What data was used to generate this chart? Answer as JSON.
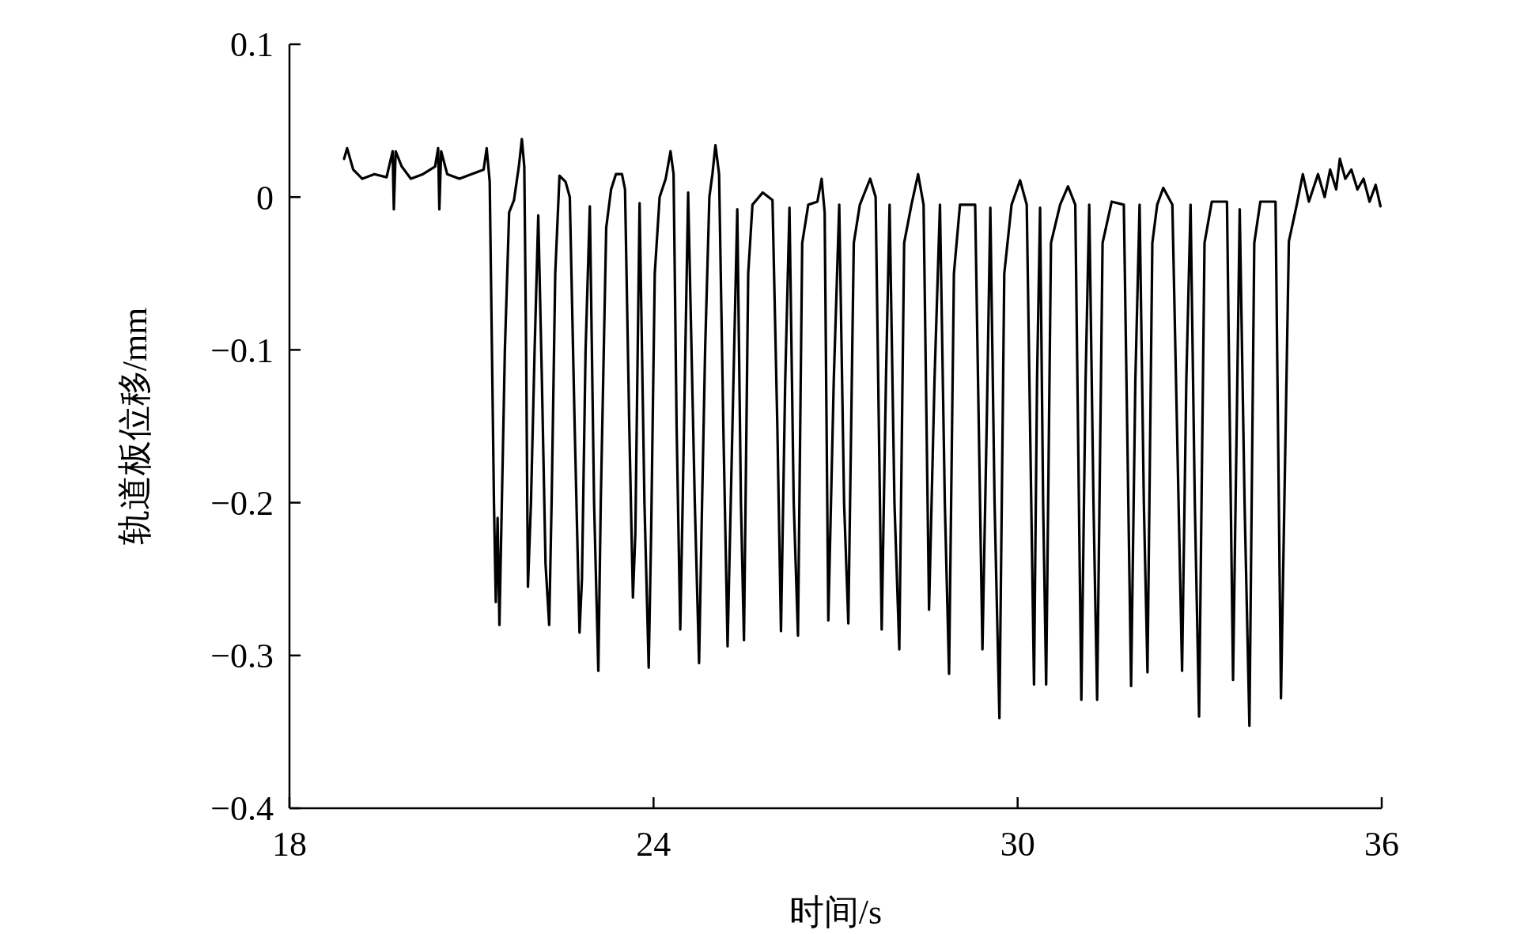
{
  "chart_data": {
    "type": "line",
    "xlabel": "时间/s",
    "ylabel": "轨道板位移/mm",
    "color": "#000000",
    "xlim": [
      18,
      36
    ],
    "ylim": [
      -0.4,
      0.1
    ],
    "xticks": [
      18,
      24,
      30,
      36
    ],
    "yticks": [
      {
        "value": -0.4,
        "label": "−0.4"
      },
      {
        "value": -0.3,
        "label": "−0.3"
      },
      {
        "value": -0.2,
        "label": "−0.2"
      },
      {
        "value": -0.1,
        "label": "−0.1"
      },
      0,
      0.1
    ],
    "x": [
      18.9,
      18.95,
      19.05,
      19.2,
      19.4,
      19.6,
      19.7,
      19.72,
      19.75,
      19.85,
      20.0,
      20.2,
      20.4,
      20.45,
      20.47,
      20.5,
      20.6,
      20.8,
      21.0,
      21.2,
      21.25,
      21.3,
      21.37,
      21.4,
      21.43,
      21.46,
      21.55,
      21.62,
      21.7,
      21.78,
      21.83,
      21.87,
      21.9,
      21.93,
      21.98,
      22.04,
      22.1,
      22.16,
      22.22,
      22.28,
      22.32,
      22.38,
      22.45,
      22.55,
      22.62,
      22.7,
      22.78,
      22.82,
      22.88,
      22.95,
      23.02,
      23.09,
      23.13,
      23.22,
      23.3,
      23.38,
      23.48,
      23.53,
      23.6,
      23.66,
      23.7,
      23.77,
      23.85,
      23.92,
      23.96,
      24.02,
      24.1,
      24.2,
      24.28,
      24.33,
      24.38,
      24.44,
      24.48,
      24.57,
      24.68,
      24.75,
      24.79,
      24.85,
      24.92,
      24.97,
      25.02,
      25.08,
      25.15,
      25.22,
      25.3,
      25.38,
      25.44,
      25.49,
      25.56,
      25.63,
      25.8,
      25.96,
      26.04,
      26.1,
      26.17,
      26.24,
      26.31,
      26.38,
      26.45,
      26.55,
      26.7,
      26.77,
      26.82,
      26.88,
      26.97,
      27.06,
      27.14,
      27.21,
      27.3,
      27.4,
      27.57,
      27.66,
      27.76,
      27.83,
      27.89,
      27.97,
      28.05,
      28.13,
      28.25,
      28.36,
      28.45,
      28.54,
      28.63,
      28.72,
      28.8,
      28.87,
      28.95,
      29.05,
      29.3,
      29.42,
      29.49,
      29.55,
      29.62,
      29.7,
      29.78,
      29.9,
      30.04,
      30.15,
      30.27,
      30.32,
      30.37,
      30.42,
      30.47,
      30.55,
      30.7,
      30.83,
      30.95,
      31.05,
      31.12,
      31.18,
      31.25,
      31.31,
      31.4,
      31.55,
      31.75,
      31.87,
      31.94,
      32.01,
      32.08,
      32.14,
      32.22,
      32.3,
      32.4,
      32.55,
      32.71,
      32.78,
      32.85,
      32.92,
      32.99,
      33.08,
      33.2,
      33.45,
      33.55,
      33.61,
      33.66,
      33.74,
      33.82,
      33.9,
      34.0,
      34.25,
      34.34,
      34.47,
      34.6,
      34.7,
      34.8,
      34.95,
      35.06,
      35.15,
      35.25,
      35.31,
      35.4,
      35.5,
      35.6,
      35.7,
      35.8,
      35.9,
      35.98
    ],
    "values": [
      0.025,
      0.032,
      0.018,
      0.012,
      0.015,
      0.013,
      0.03,
      -0.008,
      0.03,
      0.02,
      0.012,
      0.015,
      0.02,
      0.032,
      -0.008,
      0.03,
      0.015,
      0.012,
      0.015,
      0.018,
      0.032,
      0.01,
      -0.2,
      -0.265,
      -0.21,
      -0.28,
      -0.1,
      -0.01,
      -0.002,
      0.02,
      0.038,
      0.02,
      -0.1,
      -0.255,
      -0.2,
      -0.1,
      -0.012,
      -0.12,
      -0.24,
      -0.28,
      -0.2,
      -0.05,
      0.014,
      0.01,
      0.0,
      -0.15,
      -0.285,
      -0.25,
      -0.1,
      -0.006,
      -0.2,
      -0.31,
      -0.2,
      -0.02,
      0.005,
      0.015,
      0.015,
      0.005,
      -0.15,
      -0.262,
      -0.22,
      -0.004,
      -0.2,
      -0.308,
      -0.22,
      -0.05,
      0.0,
      0.012,
      0.03,
      0.015,
      -0.15,
      -0.283,
      -0.2,
      0.003,
      -0.2,
      -0.305,
      -0.22,
      -0.1,
      0.0,
      0.015,
      0.034,
      0.015,
      -0.15,
      -0.294,
      -0.15,
      -0.008,
      -0.2,
      -0.29,
      -0.05,
      -0.005,
      0.003,
      -0.002,
      -0.15,
      -0.284,
      -0.12,
      -0.007,
      -0.2,
      -0.287,
      -0.03,
      -0.005,
      -0.003,
      0.012,
      -0.01,
      -0.277,
      -0.12,
      -0.005,
      -0.2,
      -0.279,
      -0.03,
      -0.005,
      0.012,
      0.0,
      -0.283,
      -0.12,
      -0.005,
      -0.2,
      -0.296,
      -0.03,
      -0.005,
      0.015,
      -0.005,
      -0.27,
      -0.12,
      -0.005,
      -0.2,
      -0.312,
      -0.05,
      -0.005,
      -0.005,
      -0.296,
      -0.15,
      -0.007,
      -0.2,
      -0.341,
      -0.05,
      -0.005,
      0.011,
      -0.005,
      -0.319,
      -0.12,
      -0.007,
      -0.2,
      -0.319,
      -0.03,
      -0.005,
      0.007,
      -0.005,
      -0.329,
      -0.12,
      -0.005,
      -0.2,
      -0.329,
      -0.03,
      -0.003,
      -0.005,
      -0.32,
      -0.12,
      -0.005,
      -0.2,
      -0.311,
      -0.03,
      -0.005,
      0.006,
      -0.005,
      -0.31,
      -0.12,
      -0.005,
      -0.2,
      -0.34,
      -0.03,
      -0.003,
      -0.003,
      -0.316,
      -0.15,
      -0.008,
      -0.2,
      -0.346,
      -0.03,
      -0.003,
      -0.003,
      -0.328,
      -0.029,
      -0.005,
      0.015,
      -0.003,
      0.015,
      0.0,
      0.018,
      0.005,
      0.025,
      0.012,
      0.018,
      0.005,
      0.012,
      -0.003,
      0.008,
      -0.006
    ]
  }
}
